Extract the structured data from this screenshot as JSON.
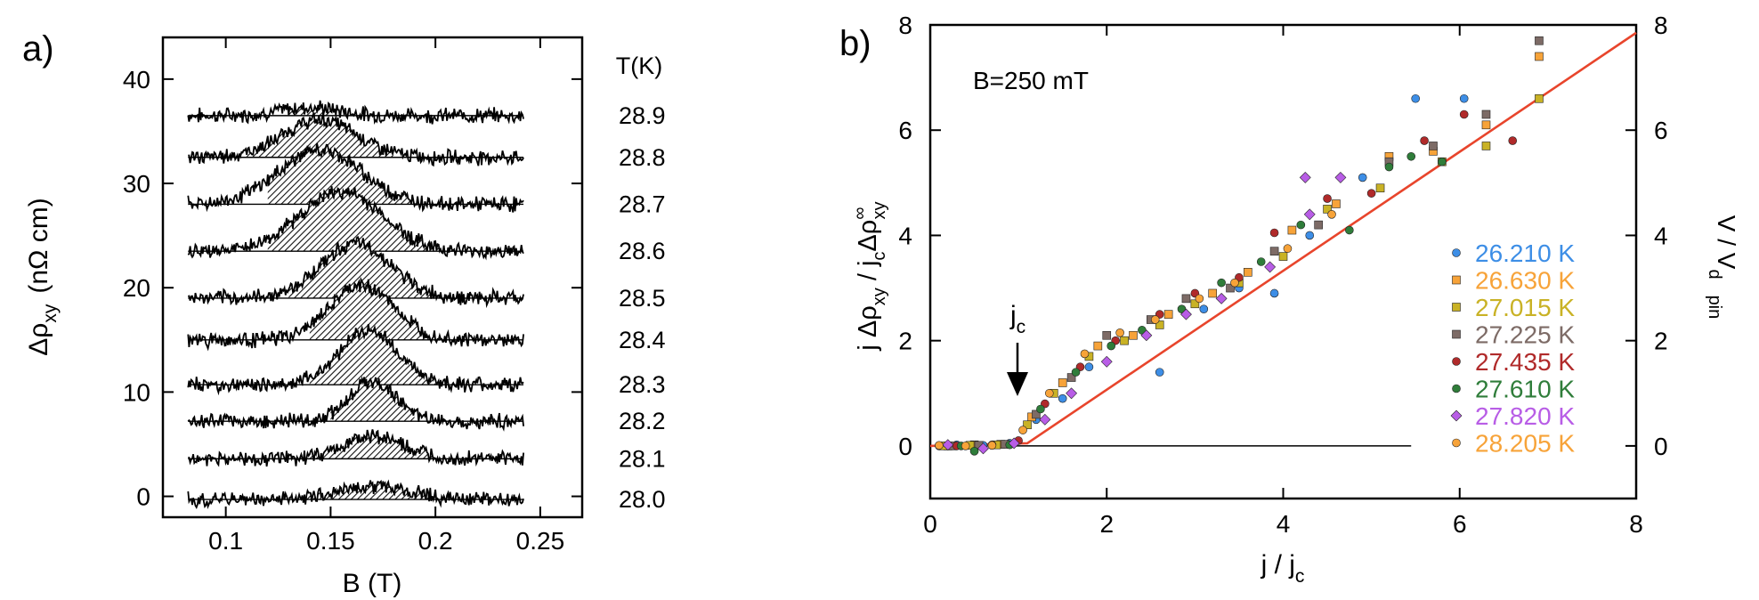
{
  "chart_data": [
    {
      "panel_label": "a)",
      "type": "line",
      "xlabel": "B (T)",
      "ylabel_parts": [
        "Δρ",
        "xy",
        "(nΩ cm)"
      ],
      "xlim": [
        0.07,
        0.27
      ],
      "ylim": [
        -2,
        44
      ],
      "xticks": [
        0.1,
        0.15,
        0.2,
        0.25
      ],
      "xtick_labels": [
        "0.1",
        "0.15",
        "0.2",
        "0.25"
      ],
      "yticks": [
        0,
        10,
        20,
        30,
        40
      ],
      "ytick_labels": [
        "0",
        "10",
        "20",
        "30",
        "40"
      ],
      "legend_title": "T(K)",
      "grid": false,
      "series": [
        {
          "name": "28.9",
          "baseline": 36.5,
          "center": 0.14,
          "width": 0.02,
          "amp": 0.8,
          "shade": [
            0.13,
            0.15
          ]
        },
        {
          "name": "28.8",
          "baseline": 32.5,
          "center": 0.145,
          "width": 0.025,
          "amp": 3.6,
          "shade": [
            0.11,
            0.18
          ]
        },
        {
          "name": "28.7",
          "baseline": 28,
          "center": 0.145,
          "width": 0.028,
          "amp": 5.2,
          "shade": [
            0.12,
            0.2
          ]
        },
        {
          "name": "28.6",
          "baseline": 23.5,
          "center": 0.155,
          "width": 0.028,
          "amp": 5.7,
          "shade": [
            0.12,
            0.21
          ]
        },
        {
          "name": "28.5",
          "baseline": 19,
          "center": 0.162,
          "width": 0.024,
          "amp": 5.2,
          "shade": [
            0.13,
            0.205
          ]
        },
        {
          "name": "28.4",
          "baseline": 15,
          "center": 0.165,
          "width": 0.022,
          "amp": 5.2,
          "shade": [
            0.14,
            0.2
          ]
        },
        {
          "name": "28.3",
          "baseline": 10.7,
          "center": 0.168,
          "width": 0.02,
          "amp": 5.2,
          "shade": [
            0.14,
            0.2
          ]
        },
        {
          "name": "28.2",
          "baseline": 7.2,
          "center": 0.17,
          "width": 0.016,
          "amp": 3.8,
          "shade": [
            0.15,
            0.19
          ]
        },
        {
          "name": "28.1",
          "baseline": 3.6,
          "center": 0.17,
          "width": 0.02,
          "amp": 2.2,
          "shade": [
            0.14,
            0.2
          ]
        },
        {
          "name": "28.0",
          "baseline": -0.3,
          "center": 0.17,
          "width": 0.025,
          "amp": 1.3,
          "shade": [
            0.12,
            0.21
          ]
        }
      ]
    },
    {
      "panel_label": "b)",
      "type": "scatter",
      "annotation": "B=250 mT",
      "arrow_label": "j",
      "arrow_label_sub": "c",
      "xlabel_parts": [
        "j / j",
        "c"
      ],
      "ylabel_parts": [
        "j Δρ",
        "xy",
        " /  j",
        "c",
        "Δρ",
        "∞",
        "xy"
      ],
      "right_ylabel_parts": [
        "V / V",
        "d",
        "pin"
      ],
      "xlim": [
        0,
        8
      ],
      "ylim": [
        -1,
        8
      ],
      "xticks": [
        0,
        2,
        4,
        6,
        8
      ],
      "xtick_labels": [
        "0",
        "2",
        "4",
        "6",
        "8"
      ],
      "yticks": [
        0,
        2,
        4,
        6,
        8
      ],
      "ytick_labels": [
        "0",
        "2",
        "4",
        "6",
        "8"
      ],
      "legend_position": "bottom-right",
      "grid": false,
      "fit_line": {
        "color": "#e8452c",
        "points": [
          [
            0,
            0
          ],
          [
            1.1,
            0.05
          ],
          [
            8,
            7.85
          ]
        ]
      },
      "zero_line_xmax": 5.45,
      "series": [
        {
          "name": "26.210 K",
          "color": "#3d8ee6",
          "marker": "circle",
          "points": [
            [
              0.1,
              0
            ],
            [
              0.3,
              0.02
            ],
            [
              0.6,
              0.01
            ],
            [
              0.9,
              0.05
            ],
            [
              1.2,
              0.5
            ],
            [
              1.5,
              0.9
            ],
            [
              1.8,
              1.5
            ],
            [
              2.2,
              2
            ],
            [
              2.6,
              1.4
            ],
            [
              3.1,
              2.6
            ],
            [
              3.5,
              3
            ],
            [
              3.9,
              2.9
            ],
            [
              4.3,
              4.0
            ],
            [
              4.9,
              5.1
            ],
            [
              5.5,
              6.6
            ],
            [
              6.05,
              6.6
            ]
          ]
        },
        {
          "name": "26.630 K",
          "color": "#f7a339",
          "marker": "square",
          "points": [
            [
              0.2,
              0
            ],
            [
              0.5,
              0.02
            ],
            [
              0.8,
              0.03
            ],
            [
              1.15,
              0.55
            ],
            [
              1.5,
              1.2
            ],
            [
              1.9,
              1.9
            ],
            [
              2.3,
              2.1
            ],
            [
              2.7,
              2.5
            ],
            [
              3.2,
              2.9
            ],
            [
              3.6,
              3.3
            ],
            [
              4.1,
              4.1
            ],
            [
              4.6,
              4.6
            ],
            [
              5.2,
              5.5
            ],
            [
              5.7,
              5.6
            ],
            [
              6.3,
              6.1
            ],
            [
              6.9,
              7.4
            ]
          ]
        },
        {
          "name": "27.015 K",
          "color": "#c9b225",
          "marker": "square",
          "points": [
            [
              0.15,
              0
            ],
            [
              0.45,
              0.01
            ],
            [
              0.75,
              0.02
            ],
            [
              1.1,
              0.4
            ],
            [
              1.4,
              1.0
            ],
            [
              1.8,
              1.7
            ],
            [
              2.2,
              2.0
            ],
            [
              2.6,
              2.3
            ],
            [
              3.0,
              2.7
            ],
            [
              3.5,
              3.1
            ],
            [
              4.0,
              3.6
            ],
            [
              4.5,
              4.5
            ],
            [
              5.1,
              4.9
            ],
            [
              5.8,
              5.4
            ],
            [
              6.3,
              5.7
            ],
            [
              6.9,
              6.6
            ]
          ]
        },
        {
          "name": "27.225 K",
          "color": "#7d6b66",
          "marker": "square",
          "points": [
            [
              0.25,
              0
            ],
            [
              0.55,
              0.01
            ],
            [
              0.85,
              0.03
            ],
            [
              1.2,
              0.6
            ],
            [
              1.6,
              1.3
            ],
            [
              2.0,
              2.1
            ],
            [
              2.5,
              2.4
            ],
            [
              2.9,
              2.8
            ],
            [
              3.4,
              3.0
            ],
            [
              3.9,
              3.7
            ],
            [
              4.4,
              4.2
            ],
            [
              5.2,
              5.4
            ],
            [
              5.7,
              5.7
            ],
            [
              6.3,
              6.3
            ],
            [
              6.9,
              7.7
            ]
          ]
        },
        {
          "name": "27.435 K",
          "color": "#b02a2a",
          "marker": "circle",
          "points": [
            [
              0.3,
              0
            ],
            [
              0.7,
              0.02
            ],
            [
              1.0,
              0.1
            ],
            [
              1.3,
              0.8
            ],
            [
              1.7,
              1.5
            ],
            [
              2.1,
              2.0
            ],
            [
              2.6,
              2.5
            ],
            [
              3.0,
              2.9
            ],
            [
              3.5,
              3.2
            ],
            [
              3.9,
              4.05
            ],
            [
              4.5,
              4.7
            ],
            [
              5.0,
              4.8
            ],
            [
              5.6,
              5.8
            ],
            [
              6.05,
              6.3
            ],
            [
              6.6,
              5.8
            ]
          ]
        },
        {
          "name": "27.610 K",
          "color": "#2f7d3a",
          "marker": "circle",
          "points": [
            [
              0.35,
              0
            ],
            [
              0.5,
              -0.1
            ],
            [
              0.9,
              0.02
            ],
            [
              1.25,
              0.7
            ],
            [
              1.65,
              1.4
            ],
            [
              2.05,
              1.9
            ],
            [
              2.4,
              2.2
            ],
            [
              2.85,
              2.6
            ],
            [
              3.3,
              3.1
            ],
            [
              3.75,
              3.5
            ],
            [
              4.2,
              4.2
            ],
            [
              4.75,
              4.1
            ],
            [
              5.2,
              5.3
            ],
            [
              5.45,
              5.5
            ],
            [
              5.8,
              5.4
            ]
          ]
        },
        {
          "name": "27.820 K",
          "color": "#b85de6",
          "marker": "diamond",
          "points": [
            [
              0.2,
              0.02
            ],
            [
              0.6,
              -0.05
            ],
            [
              0.95,
              0.05
            ],
            [
              1.3,
              0.5
            ],
            [
              1.6,
              1.0
            ],
            [
              2.0,
              1.6
            ],
            [
              2.45,
              2.1
            ],
            [
              2.9,
              2.5
            ],
            [
              3.3,
              2.8
            ],
            [
              3.85,
              3.4
            ],
            [
              4.25,
              5.1
            ],
            [
              4.65,
              5.1
            ],
            [
              4.3,
              4.4
            ]
          ]
        },
        {
          "name": "28.205 K",
          "color": "#f7a339",
          "marker": "circle",
          "points": [
            [
              0.1,
              0.01
            ],
            [
              0.4,
              0
            ],
            [
              0.7,
              0.01
            ],
            [
              1.05,
              0.3
            ],
            [
              1.35,
              1.0
            ],
            [
              1.75,
              1.75
            ],
            [
              2.15,
              2.15
            ],
            [
              2.55,
              2.4
            ],
            [
              3.05,
              2.8
            ],
            [
              3.45,
              3.1
            ],
            [
              4.05,
              3.75
            ],
            [
              4.55,
              4.4
            ]
          ]
        }
      ]
    }
  ]
}
